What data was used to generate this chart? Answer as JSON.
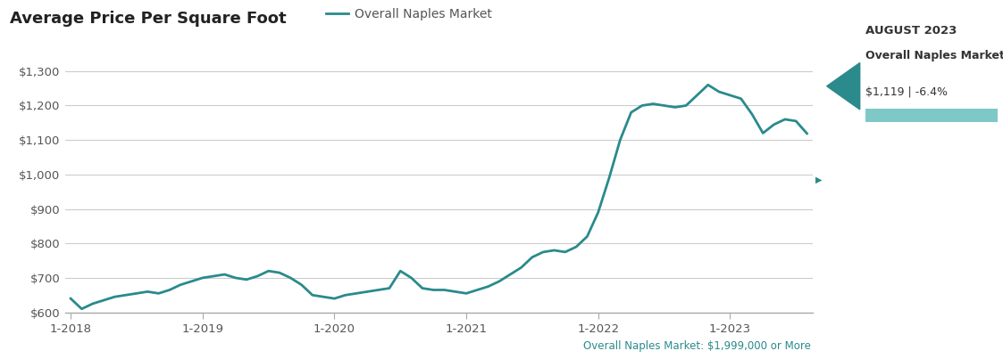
{
  "title": "Average Price Per Square Foot",
  "line_label": "Overall Naples Market",
  "line_color": "#2a8a8c",
  "background_color": "#ffffff",
  "ylim": [
    600,
    1350
  ],
  "yticks": [
    600,
    700,
    800,
    900,
    1000,
    1100,
    1200,
    1300
  ],
  "ytick_labels": [
    "$600",
    "$700",
    "$800",
    "$900",
    "$1,000",
    "$1,100",
    "$1,200",
    "$1,300"
  ],
  "xtick_labels": [
    "1-2018",
    "1-2019",
    "1-2020",
    "1-2021",
    "1-2022",
    "1-2023"
  ],
  "footer_text": "Overall Naples Market: $1,999,000 or More",
  "sidebar_title": "AUGUST 2023",
  "sidebar_market": "Overall Naples Market",
  "sidebar_value": "$1,119 | -6.4%",
  "sidebar_bar_color": "#7ec8c8",
  "sidebar_arrow_color": "#2a8a8c",
  "x_data": [
    0,
    1,
    2,
    3,
    4,
    5,
    6,
    7,
    8,
    9,
    10,
    11,
    12,
    13,
    14,
    15,
    16,
    17,
    18,
    19,
    20,
    21,
    22,
    23,
    24,
    25,
    26,
    27,
    28,
    29,
    30,
    31,
    32,
    33,
    34,
    35,
    36,
    37,
    38,
    39,
    40,
    41,
    42,
    43,
    44,
    45,
    46,
    47,
    48,
    49,
    50,
    51,
    52,
    53,
    54,
    55,
    56,
    57,
    58,
    59,
    60,
    61,
    62,
    63,
    64,
    65,
    66,
    67
  ],
  "y_data": [
    640,
    610,
    625,
    635,
    645,
    650,
    655,
    660,
    655,
    665,
    680,
    690,
    700,
    705,
    710,
    700,
    695,
    705,
    720,
    715,
    700,
    680,
    650,
    645,
    640,
    650,
    655,
    660,
    665,
    670,
    720,
    700,
    670,
    665,
    665,
    660,
    655,
    665,
    675,
    690,
    710,
    730,
    760,
    775,
    780,
    775,
    790,
    820,
    890,
    990,
    1100,
    1180,
    1200,
    1205,
    1200,
    1195,
    1200,
    1230,
    1260,
    1240,
    1230,
    1220,
    1175,
    1120,
    1145,
    1160,
    1155,
    1119
  ],
  "x_tick_positions": [
    0,
    12,
    24,
    36,
    48,
    60
  ],
  "title_fontsize": 13,
  "legend_fontsize": 10,
  "tick_fontsize": 9.5,
  "grid_color": "#cccccc",
  "title_color": "#222222",
  "tick_color": "#555555",
  "footer_color": "#2a8a8c",
  "sidebar_title_color": "#333333",
  "sidebar_text_color": "#333333",
  "scroll_arrow_color": "#2a8a8c"
}
